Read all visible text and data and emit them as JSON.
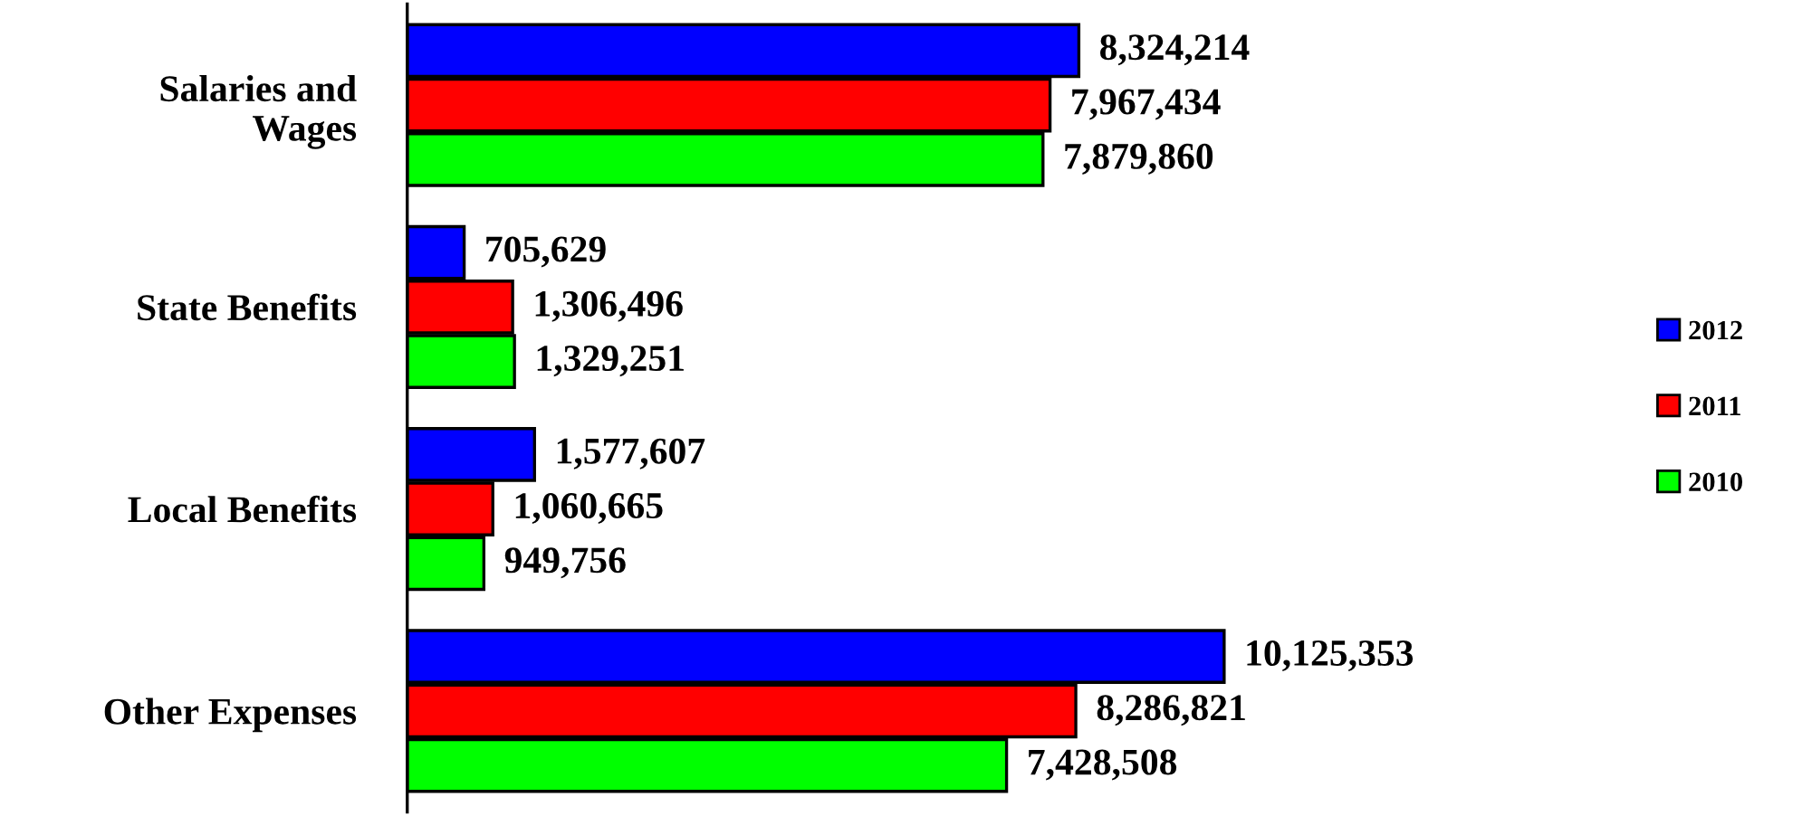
{
  "chart_data": {
    "type": "bar",
    "orientation": "horizontal",
    "categories": [
      "Salaries and\nWages",
      "State Benefits",
      "Local Benefits",
      "Other Expenses"
    ],
    "series": [
      {
        "name": "2012",
        "color": "#0000ff",
        "values": [
          8324214,
          705629,
          1577607,
          10125353
        ],
        "value_labels": [
          "8,324,214",
          "705,629",
          "1,577,607",
          "10,125,353"
        ]
      },
      {
        "name": "2011",
        "color": "#ff0000",
        "values": [
          7967434,
          1306496,
          1060665,
          8286821
        ],
        "value_labels": [
          "7,967,434",
          "1,306,496",
          "1,060,665",
          "8,286,821"
        ]
      },
      {
        "name": "2010",
        "color": "#00ff00",
        "values": [
          7879860,
          1329251,
          949756,
          7428508
        ],
        "value_labels": [
          "7,879,860",
          "1,329,251",
          "949,756",
          "7,428,508"
        ]
      }
    ],
    "legend": "right",
    "grid": false,
    "tick_labels": "y"
  }
}
